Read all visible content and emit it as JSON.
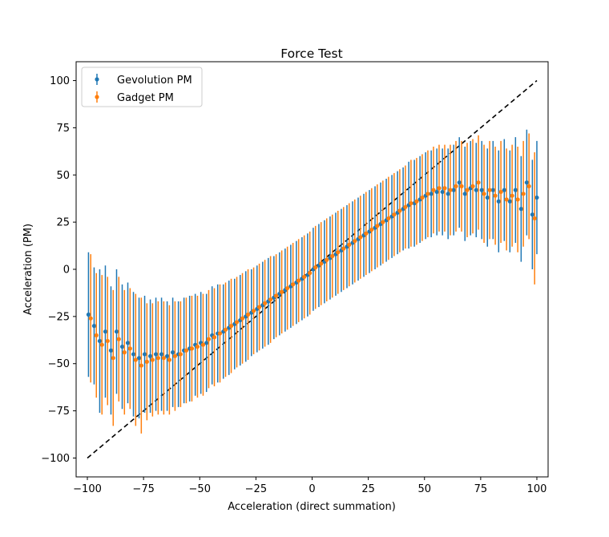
{
  "chart_data": {
    "type": "scatter",
    "title": "Force Test",
    "xlabel": "Acceleration (direct summation)",
    "ylabel": "Acceleration (PM)",
    "xlim": [
      -105,
      105
    ],
    "ylim": [
      -110,
      110
    ],
    "xticks": [
      -100,
      -75,
      -50,
      -25,
      0,
      25,
      50,
      75,
      100
    ],
    "yticks": [
      -100,
      -75,
      -50,
      -25,
      0,
      25,
      50,
      75,
      100
    ],
    "grid": false,
    "legend_position": "top-left",
    "reference_line": {
      "style": "dashed",
      "color": "#000000",
      "x": [
        -100,
        100
      ],
      "y": [
        -100,
        100
      ]
    },
    "series": [
      {
        "name": "Gevolution PM",
        "color": "#1f77b4",
        "x": [
          -99.5,
          -97.0,
          -94.5,
          -92.0,
          -89.5,
          -87.0,
          -84.5,
          -82.0,
          -79.5,
          -77.0,
          -74.5,
          -72.0,
          -69.5,
          -67.0,
          -64.5,
          -62.0,
          -59.5,
          -57.0,
          -54.5,
          -52.0,
          -49.5,
          -47.0,
          -44.5,
          -42.0,
          -39.5,
          -37.0,
          -34.5,
          -32.0,
          -29.5,
          -27.0,
          -24.5,
          -22.0,
          -19.5,
          -17.0,
          -14.5,
          -12.0,
          -9.5,
          -7.0,
          -4.5,
          -2.0,
          0.5,
          3.0,
          5.5,
          8.0,
          10.5,
          13.0,
          15.5,
          18.0,
          20.5,
          23.0,
          25.5,
          28.0,
          30.5,
          33.0,
          35.5,
          38.0,
          40.5,
          43.0,
          45.5,
          48.0,
          50.5,
          53.0,
          55.5,
          58.0,
          60.5,
          63.0,
          65.5,
          68.0,
          70.5,
          73.0,
          75.5,
          78.0,
          80.5,
          83.0,
          85.5,
          88.0,
          90.5,
          93.0,
          95.5,
          98.0,
          100.0
        ],
        "y": [
          -24,
          -30,
          -38,
          -33,
          -43,
          -33,
          -41,
          -39,
          -45,
          -47,
          -45,
          -46,
          -45,
          -45,
          -46,
          -44,
          -45,
          -43,
          -42,
          -40,
          -39,
          -39,
          -35,
          -34,
          -33,
          -31,
          -29,
          -27,
          -25,
          -23,
          -21,
          -19,
          -17,
          -15,
          -13,
          -11,
          -9,
          -7,
          -5,
          -3,
          0,
          2,
          4,
          6,
          8,
          10,
          12,
          14,
          16,
          18,
          20,
          22,
          24,
          26,
          28,
          30,
          32,
          34,
          35,
          37,
          39,
          40,
          41,
          41,
          40,
          42,
          46,
          40,
          43,
          42,
          42,
          38,
          42,
          36,
          42,
          36,
          42,
          32,
          46,
          29,
          38
        ],
        "err": [
          33,
          31,
          38,
          35,
          34,
          33,
          33,
          32,
          33,
          32,
          31,
          30,
          30,
          30,
          29,
          29,
          28,
          28,
          28,
          27,
          27,
          26,
          26,
          26,
          25,
          25,
          24,
          24,
          24,
          23,
          23,
          23,
          23,
          22,
          22,
          22,
          22,
          22,
          22,
          22,
          22,
          22,
          22,
          22,
          22,
          22,
          22,
          22,
          22,
          22,
          22,
          22,
          22,
          22,
          22,
          22,
          22,
          23,
          23,
          23,
          23,
          23,
          23,
          23,
          24,
          24,
          24,
          25,
          25,
          25,
          26,
          26,
          26,
          27,
          27,
          27,
          28,
          28,
          28,
          29,
          30
        ]
      },
      {
        "name": "Gadget PM",
        "color": "#ff7f0e",
        "x": [
          -98.5,
          -96.0,
          -93.5,
          -91.0,
          -88.5,
          -86.0,
          -83.5,
          -81.0,
          -78.5,
          -76.0,
          -73.5,
          -71.0,
          -68.5,
          -66.0,
          -63.5,
          -61.0,
          -58.5,
          -56.0,
          -53.5,
          -51.0,
          -48.5,
          -46.0,
          -43.5,
          -41.0,
          -38.5,
          -36.0,
          -33.5,
          -31.0,
          -28.5,
          -26.0,
          -23.5,
          -21.0,
          -18.5,
          -16.0,
          -13.5,
          -11.0,
          -8.5,
          -6.0,
          -3.5,
          -1.0,
          1.5,
          4.0,
          6.5,
          9.0,
          11.5,
          14.0,
          16.5,
          19.0,
          21.5,
          24.0,
          26.5,
          29.0,
          31.5,
          34.0,
          36.5,
          39.0,
          41.5,
          44.0,
          46.5,
          49.0,
          51.5,
          54.0,
          56.5,
          59.0,
          61.5,
          64.0,
          66.5,
          69.0,
          71.5,
          74.0,
          76.5,
          79.0,
          81.5,
          84.0,
          86.5,
          89.0,
          91.5,
          94.0,
          96.5,
          99.0
        ],
        "y": [
          -26,
          -35,
          -40,
          -38,
          -47,
          -37,
          -44,
          -42,
          -48,
          -51,
          -49,
          -48,
          -47,
          -47,
          -48,
          -46,
          -45,
          -43,
          -42,
          -41,
          -40,
          -37,
          -36,
          -34,
          -32,
          -30,
          -28,
          -26,
          -24,
          -22,
          -20,
          -18,
          -16,
          -14,
          -12,
          -10,
          -8,
          -6,
          -4,
          -2,
          1,
          3,
          5,
          7,
          9,
          11,
          13,
          15,
          17,
          19,
          21,
          23,
          25,
          27,
          29,
          31,
          33,
          35,
          36,
          38,
          40,
          42,
          43,
          43,
          42,
          44,
          44,
          42,
          44,
          46,
          40,
          42,
          39,
          41,
          37,
          39,
          37,
          40,
          44,
          27
        ],
        "err": [
          34,
          33,
          37,
          34,
          36,
          33,
          33,
          32,
          35,
          36,
          31,
          30,
          30,
          30,
          29,
          29,
          28,
          28,
          28,
          27,
          27,
          26,
          26,
          26,
          25,
          25,
          24,
          24,
          24,
          23,
          23,
          23,
          23,
          22,
          22,
          22,
          22,
          22,
          22,
          22,
          22,
          22,
          22,
          22,
          22,
          22,
          22,
          22,
          22,
          22,
          22,
          22,
          22,
          22,
          22,
          22,
          22,
          23,
          23,
          23,
          23,
          23,
          23,
          23,
          24,
          24,
          24,
          25,
          25,
          25,
          26,
          26,
          26,
          27,
          27,
          27,
          28,
          28,
          28,
          35
        ]
      }
    ]
  }
}
